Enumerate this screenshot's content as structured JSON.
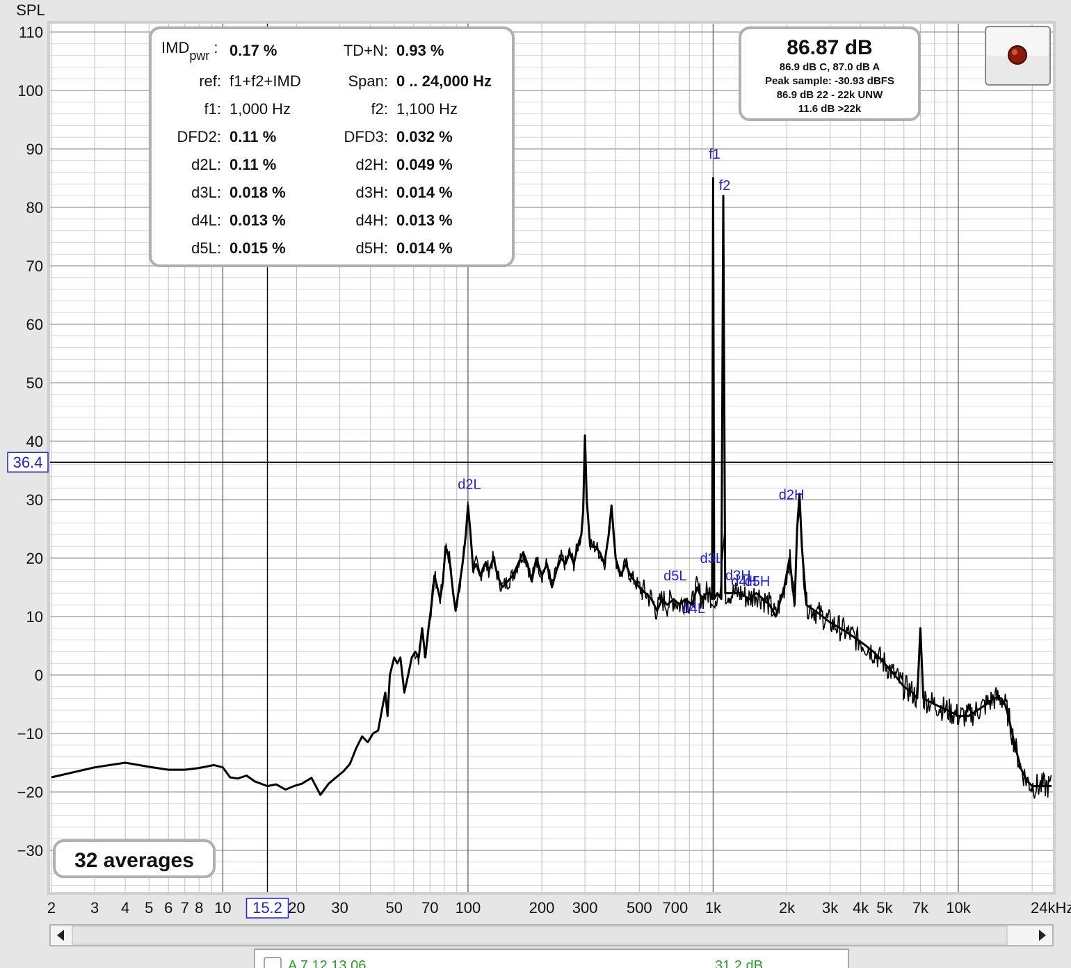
{
  "chart_data": {
    "type": "line",
    "ylabel": "SPL",
    "xunit": "Hz",
    "xscale": "log",
    "xlim": [
      2,
      24000
    ],
    "ylim": [
      -38,
      112
    ],
    "yticks": [
      110,
      100,
      90,
      80,
      70,
      60,
      50,
      40,
      30,
      20,
      10,
      0,
      -10,
      -20,
      -30
    ],
    "xticks": [
      {
        "v": 2,
        "label": "2"
      },
      {
        "v": 3,
        "label": "3"
      },
      {
        "v": 4,
        "label": "4"
      },
      {
        "v": 5,
        "label": "5"
      },
      {
        "v": 6,
        "label": "6"
      },
      {
        "v": 7,
        "label": "7"
      },
      {
        "v": 8,
        "label": "8"
      },
      {
        "v": 10,
        "label": "10"
      },
      {
        "v": 20,
        "label": "20"
      },
      {
        "v": 30,
        "label": "30"
      },
      {
        "v": 50,
        "label": "50"
      },
      {
        "v": 70,
        "label": "70"
      },
      {
        "v": 100,
        "label": "100"
      },
      {
        "v": 200,
        "label": "200"
      },
      {
        "v": 300,
        "label": "300"
      },
      {
        "v": 500,
        "label": "500"
      },
      {
        "v": 700,
        "label": "700"
      },
      {
        "v": 1000,
        "label": "1k"
      },
      {
        "v": 2000,
        "label": "2k"
      },
      {
        "v": 3000,
        "label": "3k"
      },
      {
        "v": 4000,
        "label": "4k"
      },
      {
        "v": 5000,
        "label": "5k"
      },
      {
        "v": 7000,
        "label": "7k"
      },
      {
        "v": 10000,
        "label": "10k"
      },
      {
        "v": 24000,
        "label": "24kHz"
      }
    ],
    "cursor": {
      "x": 15.2,
      "y": 36.4,
      "x_label": "15.2",
      "y_label": "36.4"
    },
    "series": [
      {
        "values": [
          [
            2,
            -17.5
          ],
          [
            3,
            -15.8
          ],
          [
            4,
            -15
          ],
          [
            5,
            -15.7
          ],
          [
            6,
            -16.2
          ],
          [
            7,
            -16.2
          ],
          [
            8,
            -15.9
          ],
          [
            9.2,
            -15.4
          ],
          [
            10,
            -15.8
          ],
          [
            10.7,
            -17.5
          ],
          [
            11.5,
            -17.7
          ],
          [
            12.5,
            -17.2
          ],
          [
            13.5,
            -18.2
          ],
          [
            15.2,
            -19
          ],
          [
            16.5,
            -18.7
          ],
          [
            18,
            -19.6
          ],
          [
            19.5,
            -19
          ],
          [
            21,
            -18.6
          ],
          [
            23,
            -17.6
          ],
          [
            25,
            -20.5
          ],
          [
            27,
            -18.6
          ],
          [
            29,
            -17.5
          ],
          [
            31,
            -16.5
          ],
          [
            33,
            -15.2
          ],
          [
            35,
            -12.5
          ],
          [
            37,
            -10.5
          ],
          [
            39,
            -11.5
          ],
          [
            41,
            -10
          ],
          [
            43,
            -9.5
          ],
          [
            45,
            -5
          ],
          [
            46,
            -3
          ],
          [
            47,
            -7
          ],
          [
            48,
            0
          ],
          [
            50,
            3
          ],
          [
            51.5,
            2
          ],
          [
            53,
            3
          ],
          [
            55,
            -3
          ],
          [
            57,
            0
          ],
          [
            59,
            3
          ],
          [
            61,
            4
          ],
          [
            63,
            3
          ],
          [
            65,
            8
          ],
          [
            67,
            3
          ],
          [
            69,
            8
          ],
          [
            71,
            12
          ],
          [
            73,
            17
          ],
          [
            75,
            15
          ],
          [
            77,
            13
          ],
          [
            79,
            16
          ],
          [
            81,
            22
          ],
          [
            84,
            20
          ],
          [
            87,
            14
          ],
          [
            89,
            11
          ],
          [
            92,
            15
          ],
          [
            95,
            19
          ],
          [
            98,
            24
          ],
          [
            100,
            29
          ],
          [
            102,
            25
          ],
          [
            105,
            18
          ],
          [
            108,
            19
          ],
          [
            112,
            17
          ],
          [
            117,
            19
          ],
          [
            122,
            18
          ],
          [
            127,
            20
          ],
          [
            132,
            17
          ],
          [
            138,
            15
          ],
          [
            145,
            16
          ],
          [
            152,
            17
          ],
          [
            160,
            19
          ],
          [
            168,
            21
          ],
          [
            175,
            19
          ],
          [
            182,
            16
          ],
          [
            190,
            20
          ],
          [
            200,
            17
          ],
          [
            210,
            19
          ],
          [
            220,
            15
          ],
          [
            230,
            18
          ],
          [
            240,
            20
          ],
          [
            250,
            19
          ],
          [
            260,
            21
          ],
          [
            270,
            19
          ],
          [
            280,
            22
          ],
          [
            290,
            24
          ],
          [
            295,
            28
          ],
          [
            300,
            41
          ],
          [
            305,
            30
          ],
          [
            315,
            22
          ],
          [
            330,
            22
          ],
          [
            345,
            21
          ],
          [
            360,
            19
          ],
          [
            375,
            24
          ],
          [
            385,
            29
          ],
          [
            400,
            20
          ],
          [
            420,
            17
          ],
          [
            440,
            19
          ],
          [
            460,
            17
          ],
          [
            480,
            16
          ],
          [
            500,
            15
          ],
          [
            530,
            14
          ],
          [
            560,
            13
          ],
          [
            590,
            11
          ],
          [
            620,
            13
          ],
          [
            650,
            12
          ],
          [
            690,
            13
          ],
          [
            730,
            12
          ],
          [
            770,
            13
          ],
          [
            820,
            12
          ],
          [
            860,
            15
          ],
          [
            900,
            13
          ],
          [
            940,
            14
          ],
          [
            970,
            14
          ],
          [
            990,
            13
          ],
          [
            1000,
            85
          ],
          [
            1010,
            13
          ],
          [
            1040,
            14
          ],
          [
            1080,
            13
          ],
          [
            1100,
            82
          ],
          [
            1120,
            14
          ],
          [
            1200,
            14
          ],
          [
            1300,
            14
          ],
          [
            1400,
            13
          ],
          [
            1500,
            14
          ],
          [
            1600,
            13
          ],
          [
            1700,
            12
          ],
          [
            1800,
            10
          ],
          [
            1950,
            15
          ],
          [
            2050,
            20
          ],
          [
            2150,
            12
          ],
          [
            2200,
            25
          ],
          [
            2250,
            31
          ],
          [
            2300,
            22
          ],
          [
            2400,
            12
          ],
          [
            2600,
            11
          ],
          [
            2800,
            10
          ],
          [
            3000,
            9
          ],
          [
            3300,
            8
          ],
          [
            3600,
            7
          ],
          [
            3900,
            6
          ],
          [
            4200,
            5
          ],
          [
            4500,
            4
          ],
          [
            5000,
            2
          ],
          [
            5500,
            0
          ],
          [
            6000,
            -2
          ],
          [
            6500,
            -3
          ],
          [
            6800,
            -4
          ],
          [
            7000,
            8
          ],
          [
            7200,
            -4
          ],
          [
            8000,
            -5
          ],
          [
            9000,
            -6
          ],
          [
            10000,
            -7
          ],
          [
            11000,
            -7
          ],
          [
            12000,
            -6
          ],
          [
            13000,
            -5
          ],
          [
            14000,
            -4
          ],
          [
            15000,
            -4
          ],
          [
            15500,
            -5
          ],
          [
            16000,
            -7
          ],
          [
            17000,
            -12
          ],
          [
            18000,
            -16
          ],
          [
            19000,
            -18
          ],
          [
            20000,
            -19
          ],
          [
            21000,
            -19
          ],
          [
            22000,
            -19
          ],
          [
            23000,
            -19
          ],
          [
            24000,
            -19
          ]
        ]
      }
    ],
    "markers": [
      {
        "label": "f1",
        "x": 1000,
        "y": 85
      },
      {
        "label": "f2",
        "x": 1100,
        "y": 82
      },
      {
        "label": "d2L",
        "x": 100,
        "y": 29
      },
      {
        "label": "d2H",
        "x": 2200,
        "y": 26
      },
      {
        "label": "d3L",
        "x": 900,
        "y": 18
      },
      {
        "label": "d5L",
        "x": 700,
        "y": 15
      },
      {
        "label": "d4L",
        "x": 800,
        "y": 12
      },
      {
        "label": "d3H",
        "x": 1200,
        "y": 16
      },
      {
        "label": "d4H",
        "x": 1300,
        "y": 15
      },
      {
        "label": "d5H",
        "x": 1400,
        "y": 15
      }
    ]
  },
  "imd_panel": {
    "rows": [
      {
        "l1": "IMD",
        "sub1": "pwr",
        "l1_suffix": ":",
        "v1": "0.17 %",
        "l2": "TD+N:",
        "v2": "0.93 %"
      },
      {
        "l1": "ref:",
        "v1": "f1+f2+IMD",
        "v1_normal": true,
        "l2": "Span:",
        "v2": "0 .. 24,000 Hz"
      },
      {
        "l1": "f1:",
        "v1": "1,000 Hz",
        "v1_normal": true,
        "l2": "f2:",
        "v2": "1,100 Hz",
        "v2_normal": true
      },
      {
        "l1": "DFD2:",
        "v1": "0.11 %",
        "l2": "DFD3:",
        "v2": "0.032 %"
      },
      {
        "l1": "d2L:",
        "v1": "0.11 %",
        "l2": "d2H:",
        "v2": "0.049 %"
      },
      {
        "l1": "d3L:",
        "v1": "0.018 %",
        "l2": "d3H:",
        "v2": "0.014 %"
      },
      {
        "l1": "d4L:",
        "v1": "0.013 %",
        "l2": "d4H:",
        "v2": "0.013 %"
      },
      {
        "l1": "d5L:",
        "v1": "0.015 %",
        "l2": "d5H:",
        "v2": "0.014 %"
      }
    ]
  },
  "level_panel": {
    "main": "86.87 dB",
    "lines": [
      "86.9 dB C, 87.0 dB A",
      "Peak sample: -30.93 dBFS",
      "86.9 dB 22 - 22k UNW",
      "11.6 dB >22k"
    ]
  },
  "averages": "32 averages",
  "legend_peek": {
    "left": "A 7 12 13 06",
    "right": "31.2 dB"
  },
  "colors": {
    "trace": "#000000",
    "marker": "#1f1fd0",
    "plot_bg": "#ffffff",
    "legend_green": "#2a9a2a"
  }
}
